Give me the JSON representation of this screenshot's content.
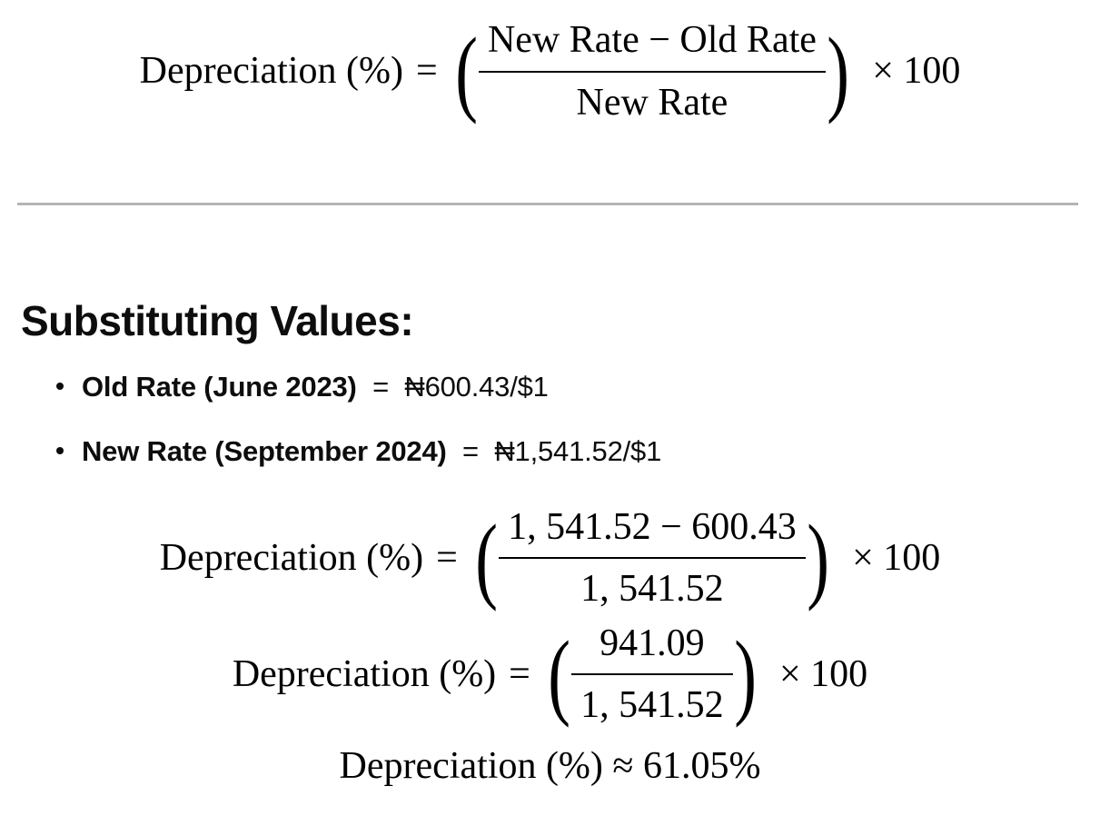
{
  "page": {
    "background_color": "#ffffff",
    "text_color": "#0d0d0d",
    "math_color": "#000000",
    "divider_color": "#b4b4b4"
  },
  "math_symbols": {
    "open_paren": "(",
    "close_paren": ")",
    "equals": "="
  },
  "formula_general": {
    "lhs": "Depreciation (%)",
    "numerator": "New Rate − Old Rate",
    "denominator": "New Rate",
    "multiplier": "× 100"
  },
  "section": {
    "heading": "Substituting Values:",
    "bullets": [
      {
        "label": "Old Rate (June 2023)",
        "separator": "=",
        "value": "₦600.43/$1"
      },
      {
        "label": "New Rate (September 2024)",
        "separator": "=",
        "value": "₦1,541.52/$1"
      }
    ]
  },
  "formula_substituted": {
    "lhs": "Depreciation (%)",
    "numerator": "1, 541.52 − 600.43",
    "denominator": "1, 541.52",
    "multiplier": "× 100"
  },
  "formula_simplified": {
    "lhs": "Depreciation (%)",
    "numerator": "941.09",
    "denominator": "1, 541.52",
    "multiplier": "× 100"
  },
  "formula_result": {
    "text": "Depreciation (%) ≈ 61.05%"
  }
}
